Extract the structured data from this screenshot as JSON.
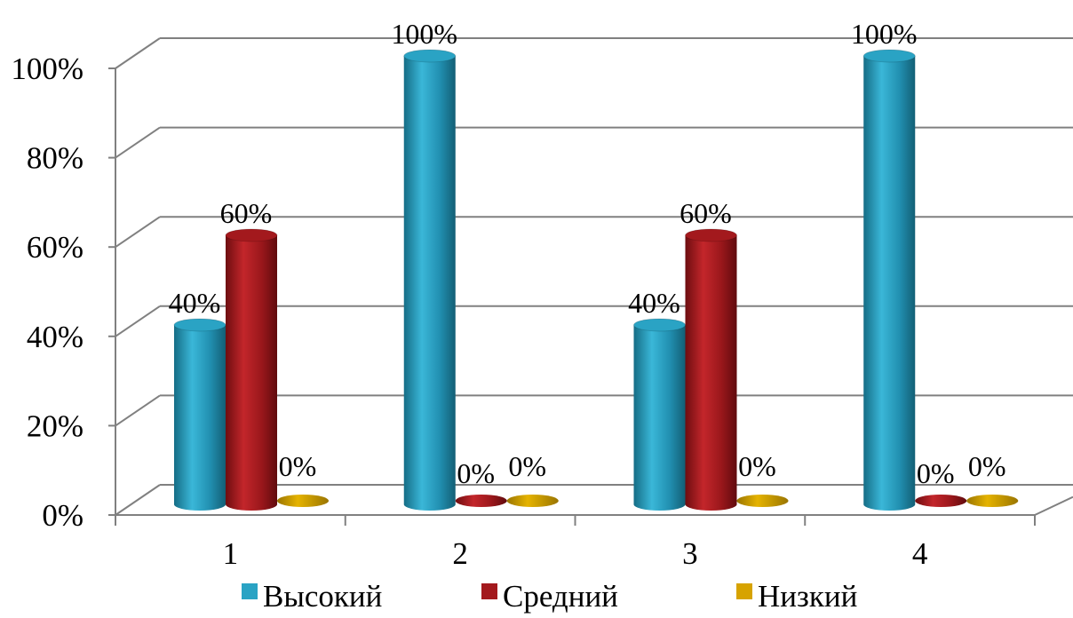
{
  "chart_data": {
    "type": "bar",
    "categories": [
      "1",
      "2",
      "3",
      "4"
    ],
    "series": [
      {
        "name": "Высокий",
        "values": [
          40,
          100,
          40,
          100
        ],
        "color": "#2aa3c4"
      },
      {
        "name": "Средний",
        "values": [
          60,
          0,
          60,
          0
        ],
        "color": "#a3191d"
      },
      {
        "name": "Низкий",
        "values": [
          0,
          0,
          0,
          0
        ],
        "color": "#d7a300"
      }
    ],
    "data_labels": [
      [
        "40%",
        "100%",
        "40%",
        "100%"
      ],
      [
        "60%",
        "0%",
        "60%",
        "0%"
      ],
      [
        "0%",
        "0%",
        "0%",
        "0%"
      ]
    ],
    "y_ticks": [
      "0%",
      "20%",
      "40%",
      "60%",
      "80%",
      "100%"
    ],
    "ylim": [
      0,
      100
    ],
    "y_format": "percent",
    "grid": true,
    "style": "3d-cylinder",
    "legend_position": "bottom"
  }
}
